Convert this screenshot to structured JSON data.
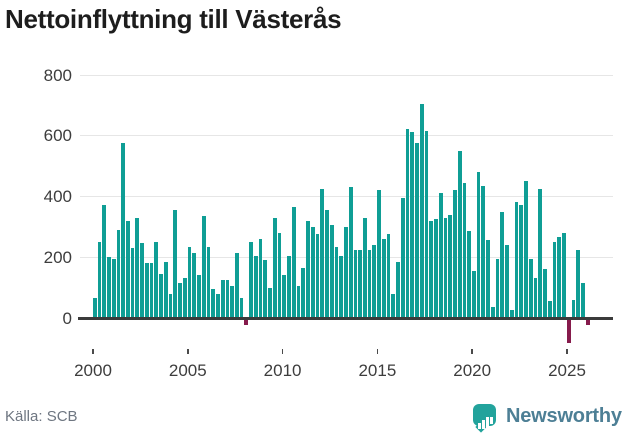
{
  "title": "Nettoinflyttning till Västerås",
  "source": "Källa: SCB",
  "branding": {
    "logo_text": "Newsworthy",
    "logo_icon": "bar-chart-speech-bubble-icon"
  },
  "chart_data": {
    "type": "bar",
    "title": "Nettoinflyttning till Västerås",
    "frequency": "quarterly",
    "x_start": "2000 Q1",
    "x_tick_labels": [
      "2000",
      "2005",
      "2010",
      "2015",
      "2020",
      "2025"
    ],
    "y_ticks": [
      0,
      200,
      400,
      600,
      800
    ],
    "ylim": [
      -100,
      800
    ],
    "grid": true,
    "legend": "none",
    "colors": {
      "positive": "#0f9e95",
      "negative": "#861b4c"
    },
    "values": [
      65,
      250,
      370,
      200,
      195,
      290,
      575,
      320,
      230,
      330,
      245,
      180,
      180,
      250,
      145,
      185,
      80,
      355,
      115,
      130,
      235,
      215,
      140,
      335,
      235,
      95,
      80,
      125,
      125,
      105,
      215,
      65,
      -15,
      250,
      205,
      260,
      190,
      100,
      330,
      280,
      140,
      205,
      365,
      105,
      165,
      320,
      300,
      275,
      425,
      355,
      305,
      235,
      205,
      300,
      430,
      225,
      225,
      330,
      225,
      240,
      420,
      260,
      275,
      80,
      185,
      395,
      620,
      610,
      575,
      705,
      615,
      320,
      325,
      410,
      330,
      340,
      420,
      550,
      445,
      285,
      155,
      480,
      435,
      255,
      35,
      195,
      350,
      240,
      25,
      380,
      370,
      450,
      195,
      130,
      425,
      160,
      57,
      250,
      265,
      280,
      -75,
      60,
      225,
      115,
      -15
    ]
  }
}
